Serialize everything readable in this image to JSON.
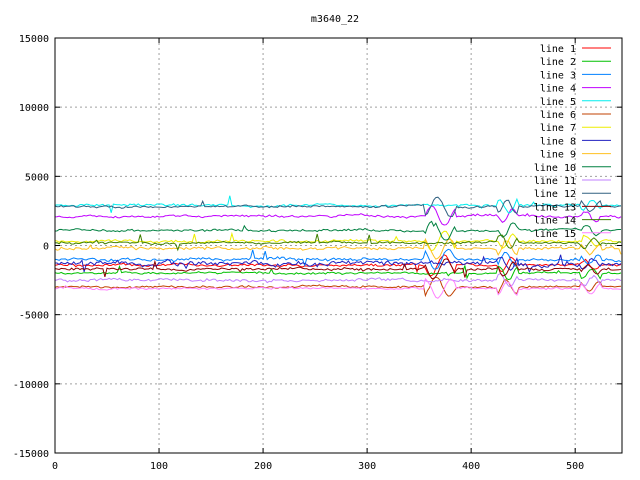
{
  "chart_data": {
    "type": "line",
    "title": "m3640_22",
    "xlabel": "",
    "ylabel": "",
    "xlim": [
      0,
      545
    ],
    "ylim": [
      -15000,
      15000
    ],
    "xticks": [
      0,
      100,
      200,
      300,
      400,
      500
    ],
    "yticks": [
      -15000,
      -10000,
      -5000,
      0,
      5000,
      10000,
      15000
    ],
    "grid": true,
    "legend_position": "top-right",
    "series": [
      {
        "name": "line 1",
        "color": "#ff0000",
        "base": -1400,
        "noise": 120
      },
      {
        "name": "line 2",
        "color": "#00c000",
        "base": -2000,
        "noise": 100
      },
      {
        "name": "line 3",
        "color": "#0080ff",
        "base": -1000,
        "noise": 160
      },
      {
        "name": "line 4",
        "color": "#c000ff",
        "base": 2100,
        "noise": 130
      },
      {
        "name": "line 5",
        "color": "#00eeee",
        "base": 2900,
        "noise": 120
      },
      {
        "name": "line 6",
        "color": "#c04000",
        "base": -3000,
        "noise": 110
      },
      {
        "name": "line 7",
        "color": "#eeee00",
        "base": 300,
        "noise": 130
      },
      {
        "name": "line 8",
        "color": "#2020c0",
        "base": -1300,
        "noise": 250
      },
      {
        "name": "line 9",
        "color": "#ffc020",
        "base": -200,
        "noise": 150
      },
      {
        "name": "line 10",
        "color": "#008040",
        "base": 1100,
        "noise": 120
      },
      {
        "name": "line 11",
        "color": "#c080ff",
        "base": -2500,
        "noise": 150
      },
      {
        "name": "line 12",
        "color": "#306080",
        "base": 2800,
        "noise": 110
      },
      {
        "name": "line 13",
        "color": "#8b0000",
        "base": -1700,
        "noise": 130
      },
      {
        "name": "line 14",
        "color": "#408000",
        "base": 200,
        "noise": 120
      },
      {
        "name": "line 15",
        "color": "#ff80ff",
        "base": -3100,
        "noise": 100
      }
    ]
  }
}
